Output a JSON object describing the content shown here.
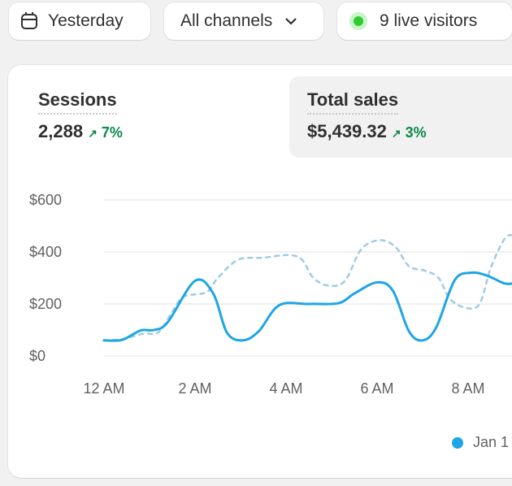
{
  "toolbar": {
    "date_label": "Yesterday",
    "date_icon": "calendar-icon",
    "channel_label": "All channels",
    "channel_icon": "chevron-down-icon",
    "live_label": "9 live visitors",
    "live_color": "#2ecc2e"
  },
  "metrics": [
    {
      "title": "Sessions",
      "value": "2,288",
      "delta": "7%",
      "selected": false
    },
    {
      "title": "Total sales",
      "value": "$5,439.32",
      "delta": "3%",
      "selected": true
    }
  ],
  "chart_data": {
    "type": "line",
    "y_ticks": [
      "$0",
      "$200",
      "$400",
      "$600"
    ],
    "ylim": [
      0,
      600
    ],
    "x_ticks": [
      "12 AM",
      "2 AM",
      "4 AM",
      "6 AM",
      "8 AM"
    ],
    "x_unit": "hour",
    "grid": true,
    "legend_position": "bottom-right",
    "legend": [
      "Jan 1"
    ],
    "colors": {
      "current": "#1ea5e6",
      "comparison": "#9ecbe8"
    },
    "series": [
      {
        "name": "Jan 1",
        "style": "solid",
        "points": [
          [
            0,
            60
          ],
          [
            0.4,
            62
          ],
          [
            0.8,
            98
          ],
          [
            1.1,
            100
          ],
          [
            1.4,
            130
          ],
          [
            2.0,
            289
          ],
          [
            2.4,
            240
          ],
          [
            2.7,
            90
          ],
          [
            3.05,
            60
          ],
          [
            3.4,
            95
          ],
          [
            3.85,
            195
          ],
          [
            4.5,
            200
          ],
          [
            5.15,
            203
          ],
          [
            5.5,
            240
          ],
          [
            6.0,
            283
          ],
          [
            6.35,
            250
          ],
          [
            6.7,
            95
          ],
          [
            7.0,
            60
          ],
          [
            7.3,
            110
          ],
          [
            7.7,
            290
          ],
          [
            8.05,
            320
          ],
          [
            8.4,
            310
          ],
          [
            8.78,
            280
          ],
          [
            9.0,
            278
          ]
        ]
      },
      {
        "style": "dashed",
        "points": [
          [
            0,
            60
          ],
          [
            0.4,
            65
          ],
          [
            0.85,
            85
          ],
          [
            1.2,
            92
          ],
          [
            1.5,
            170
          ],
          [
            1.75,
            228
          ],
          [
            2.25,
            245
          ],
          [
            2.5,
            300
          ],
          [
            2.95,
            370
          ],
          [
            3.5,
            378
          ],
          [
            4.05,
            388
          ],
          [
            4.35,
            370
          ],
          [
            4.6,
            300
          ],
          [
            4.95,
            270
          ],
          [
            5.3,
            290
          ],
          [
            5.65,
            410
          ],
          [
            6.05,
            445
          ],
          [
            6.4,
            420
          ],
          [
            6.7,
            345
          ],
          [
            7.05,
            328
          ],
          [
            7.35,
            300
          ],
          [
            7.6,
            220
          ],
          [
            7.95,
            185
          ],
          [
            8.25,
            200
          ],
          [
            8.5,
            340
          ],
          [
            8.8,
            450
          ],
          [
            9.0,
            465
          ]
        ]
      }
    ]
  }
}
